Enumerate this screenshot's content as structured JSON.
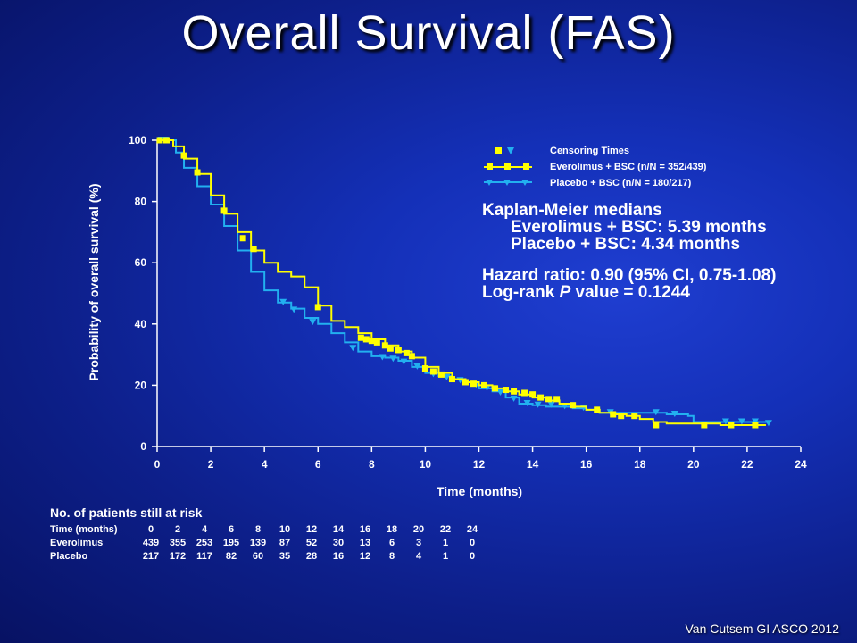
{
  "slide": {
    "title": "Overall Survival (FAS)",
    "source": "Van Cutsem GI ASCO 2012"
  },
  "colors": {
    "everolimus": "#ffff00",
    "placebo": "#22b0f0",
    "axis": "#ffffff"
  },
  "legend": {
    "censoring": "Censoring Times",
    "everolimus": "Everolimus + BSC (n/N = 352/439)",
    "placebo": "Placebo + BSC (n/N = 180/217)"
  },
  "km": {
    "heading": "Kaplan-Meier medians",
    "everolimus_median": "Everolimus + BSC: 5.39 months",
    "placebo_median": "Placebo + BSC: 4.34 months",
    "hazard_ratio": "Hazard ratio: 0.90 (95% CI, 0.75-1.08)",
    "logrank_prefix": "Log-rank ",
    "logrank_p": "P",
    "logrank_suffix": " value = 0.1244"
  },
  "risk_table": {
    "heading": "No. of patients still at risk",
    "row_labels": [
      "Time (months)",
      "Everolimus",
      "Placebo"
    ],
    "time": [
      "0",
      "2",
      "4",
      "6",
      "8",
      "10",
      "12",
      "14",
      "16",
      "18",
      "20",
      "22",
      "24"
    ],
    "everolimus": [
      "439",
      "355",
      "253",
      "195",
      "139",
      "87",
      "52",
      "30",
      "13",
      "6",
      "3",
      "1",
      "0"
    ],
    "placebo": [
      "217",
      "172",
      "117",
      "82",
      "60",
      "35",
      "28",
      "16",
      "12",
      "8",
      "4",
      "1",
      "0"
    ]
  },
  "chart_data": {
    "type": "line",
    "xlabel": "Time (months)",
    "ylabel": "Probability of overall survival (%)",
    "xlim": [
      0,
      24
    ],
    "ylim": [
      0,
      100
    ],
    "xticks": [
      0,
      2,
      4,
      6,
      8,
      10,
      12,
      14,
      16,
      18,
      20,
      22,
      24
    ],
    "yticks": [
      0,
      20,
      40,
      60,
      80,
      100
    ],
    "grid": false,
    "legend_position": "top-right",
    "series": [
      {
        "name": "Everolimus + BSC (n/N = 352/439)",
        "color": "#ffff00",
        "marker": "square",
        "points": [
          [
            0,
            100
          ],
          [
            0.3,
            100
          ],
          [
            0.6,
            98
          ],
          [
            1,
            94
          ],
          [
            1.5,
            89
          ],
          [
            2,
            82
          ],
          [
            2.5,
            76
          ],
          [
            3,
            70
          ],
          [
            3.5,
            64
          ],
          [
            4,
            60
          ],
          [
            4.5,
            57
          ],
          [
            5,
            55.5
          ],
          [
            5.5,
            52
          ],
          [
            6,
            46
          ],
          [
            6.5,
            41
          ],
          [
            7,
            39
          ],
          [
            7.5,
            37
          ],
          [
            8,
            35
          ],
          [
            8.5,
            33
          ],
          [
            9,
            31
          ],
          [
            9.5,
            29
          ],
          [
            10,
            26
          ],
          [
            10.5,
            24
          ],
          [
            11,
            22
          ],
          [
            11.5,
            21
          ],
          [
            12,
            20
          ],
          [
            12.5,
            19
          ],
          [
            13,
            18
          ],
          [
            13.5,
            17
          ],
          [
            14,
            16
          ],
          [
            14.5,
            15
          ],
          [
            15,
            14
          ],
          [
            15.5,
            13
          ],
          [
            16,
            12
          ],
          [
            16.5,
            11
          ],
          [
            17,
            10.5
          ],
          [
            17.5,
            10
          ],
          [
            18,
            9
          ],
          [
            18.5,
            8
          ],
          [
            19,
            7.5
          ],
          [
            20,
            7.5
          ],
          [
            21,
            7
          ],
          [
            22,
            7
          ],
          [
            22.7,
            7
          ]
        ],
        "censor_times": [
          [
            0.1,
            100
          ],
          [
            0.35,
            100
          ],
          [
            1,
            95
          ],
          [
            1.5,
            89.5
          ],
          [
            2.5,
            77
          ],
          [
            3.2,
            68
          ],
          [
            3.6,
            64.5
          ],
          [
            6,
            45.5
          ],
          [
            7.6,
            35.5
          ],
          [
            7.8,
            35
          ],
          [
            8,
            34.5
          ],
          [
            8.2,
            34
          ],
          [
            8.5,
            33
          ],
          [
            8.7,
            32
          ],
          [
            9,
            31.5
          ],
          [
            9.3,
            30.5
          ],
          [
            9.5,
            29.5
          ],
          [
            10,
            25.5
          ],
          [
            10.3,
            24.5
          ],
          [
            10.6,
            23.5
          ],
          [
            11,
            22
          ],
          [
            11.5,
            21
          ],
          [
            11.8,
            20.5
          ],
          [
            12.2,
            20
          ],
          [
            12.6,
            19
          ],
          [
            13,
            18.5
          ],
          [
            13.3,
            18
          ],
          [
            13.7,
            17.5
          ],
          [
            14,
            17
          ],
          [
            14.3,
            16
          ],
          [
            14.6,
            15.5
          ],
          [
            14.9,
            15.5
          ],
          [
            15.5,
            13.5
          ],
          [
            16.4,
            12
          ],
          [
            17,
            10.5
          ],
          [
            17.3,
            10
          ],
          [
            17.8,
            10
          ],
          [
            18.6,
            7
          ],
          [
            20.4,
            7
          ],
          [
            21.4,
            7
          ],
          [
            22.3,
            7
          ]
        ]
      },
      {
        "name": "Placebo + BSC (n/N = 180/217)",
        "color": "#22b0f0",
        "marker": "triangle-down",
        "points": [
          [
            0,
            100
          ],
          [
            0.4,
            100
          ],
          [
            0.7,
            96
          ],
          [
            1,
            91
          ],
          [
            1.5,
            85
          ],
          [
            2,
            79
          ],
          [
            2.5,
            72
          ],
          [
            3,
            64
          ],
          [
            3.5,
            57
          ],
          [
            4,
            51
          ],
          [
            4.5,
            47
          ],
          [
            5,
            45
          ],
          [
            5.5,
            42
          ],
          [
            6,
            40
          ],
          [
            6.5,
            37
          ],
          [
            7,
            34
          ],
          [
            7.5,
            31
          ],
          [
            8,
            29.5
          ],
          [
            8.5,
            29
          ],
          [
            9,
            28
          ],
          [
            9.5,
            26
          ],
          [
            10,
            24
          ],
          [
            10.5,
            23
          ],
          [
            11,
            22
          ],
          [
            11.5,
            21
          ],
          [
            12,
            19
          ],
          [
            12.5,
            18
          ],
          [
            13,
            16
          ],
          [
            13.5,
            14
          ],
          [
            14,
            13.5
          ],
          [
            14.5,
            13
          ],
          [
            15,
            13
          ],
          [
            15.5,
            12.5
          ],
          [
            16,
            12
          ],
          [
            16.5,
            11
          ],
          [
            17,
            11
          ],
          [
            18,
            11
          ],
          [
            19,
            10.5
          ],
          [
            19.8,
            10
          ],
          [
            20,
            8
          ],
          [
            21,
            8
          ],
          [
            22,
            8
          ],
          [
            22.8,
            7.5
          ]
        ],
        "censor_times": [
          [
            0.15,
            100
          ],
          [
            0.3,
            100
          ],
          [
            4.7,
            47
          ],
          [
            5.1,
            44.5
          ],
          [
            5.8,
            40.5
          ],
          [
            7.3,
            32
          ],
          [
            8.4,
            29
          ],
          [
            8.8,
            28.5
          ],
          [
            9.2,
            27.5
          ],
          [
            9.7,
            26
          ],
          [
            10.3,
            23.5
          ],
          [
            10.8,
            22.5
          ],
          [
            11.3,
            21.5
          ],
          [
            11.9,
            20
          ],
          [
            12.3,
            19
          ],
          [
            12.8,
            17.5
          ],
          [
            13.3,
            15.5
          ],
          [
            13.8,
            14
          ],
          [
            14.2,
            13.5
          ],
          [
            14.7,
            13.5
          ],
          [
            15.2,
            13
          ],
          [
            15.9,
            12.5
          ],
          [
            16.9,
            11
          ],
          [
            18.6,
            11
          ],
          [
            19.3,
            10.5
          ],
          [
            21.2,
            8
          ],
          [
            21.8,
            8
          ],
          [
            22.3,
            8
          ],
          [
            22.8,
            7.5
          ]
        ]
      }
    ]
  }
}
